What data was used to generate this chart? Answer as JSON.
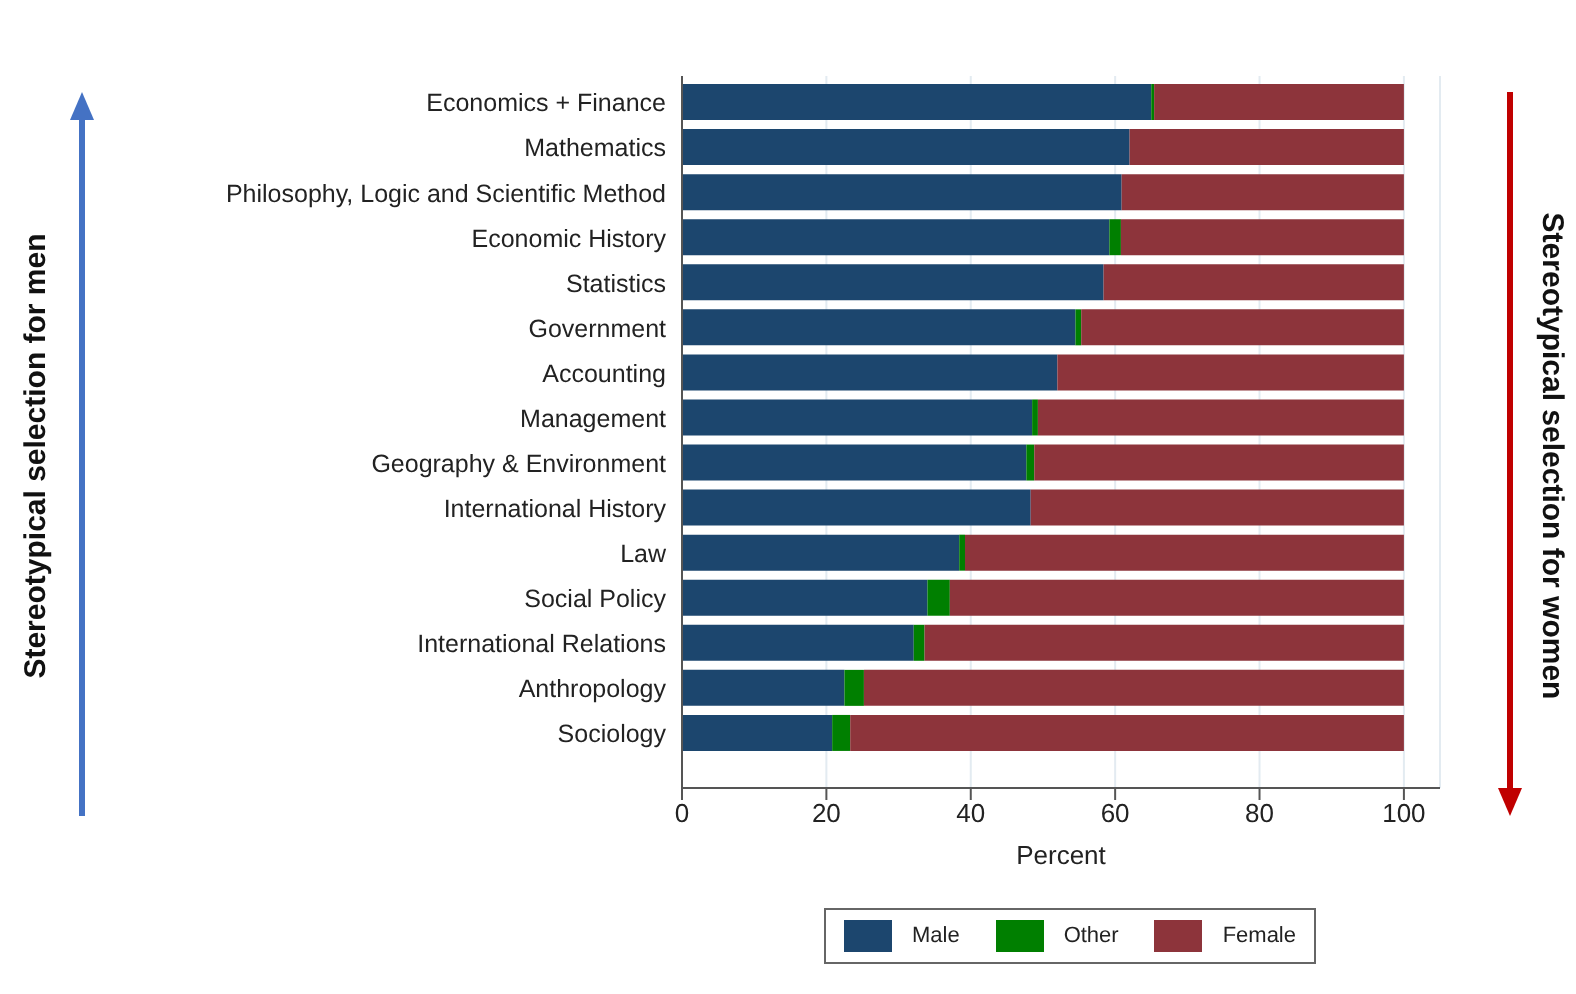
{
  "chart_data": {
    "type": "bar",
    "orientation": "horizontal",
    "stacked": true,
    "xlabel": "Percent",
    "categories": [
      "Economics + Finance",
      "Mathematics",
      "Philosophy, Logic and Scientific Method",
      "Economic History",
      "Statistics",
      "Government",
      "Accounting",
      "Management",
      "Geography & Environment",
      "International History",
      "Law",
      "Social Policy",
      "International Relations",
      "Anthropology",
      "Sociology"
    ],
    "series": [
      {
        "name": "Male",
        "color": "#1c466e",
        "values": [
          65.0,
          62.0,
          60.9,
          59.2,
          58.4,
          54.5,
          52.0,
          48.5,
          47.7,
          48.3,
          38.4,
          34.0,
          32.1,
          22.5,
          20.8
        ]
      },
      {
        "name": "Other",
        "color": "#007f00",
        "values": [
          0.4,
          0,
          0,
          1.6,
          0,
          0.8,
          0,
          0.8,
          1.1,
          0,
          0.8,
          3.1,
          1.5,
          2.7,
          2.5
        ]
      },
      {
        "name": "Female",
        "color": "#8d343b",
        "values": [
          34.6,
          38.0,
          39.1,
          39.2,
          41.6,
          44.7,
          48.0,
          50.7,
          51.2,
          51.7,
          60.8,
          62.9,
          66.4,
          74.8,
          76.7
        ]
      }
    ],
    "xlim": [
      0,
      105
    ],
    "xticks": [
      0,
      20,
      40,
      60,
      80,
      100
    ],
    "grid": "x",
    "legend": "bottom",
    "annotations": [
      "Stereotypical selection for men",
      "Stereotypical selection for women"
    ]
  }
}
